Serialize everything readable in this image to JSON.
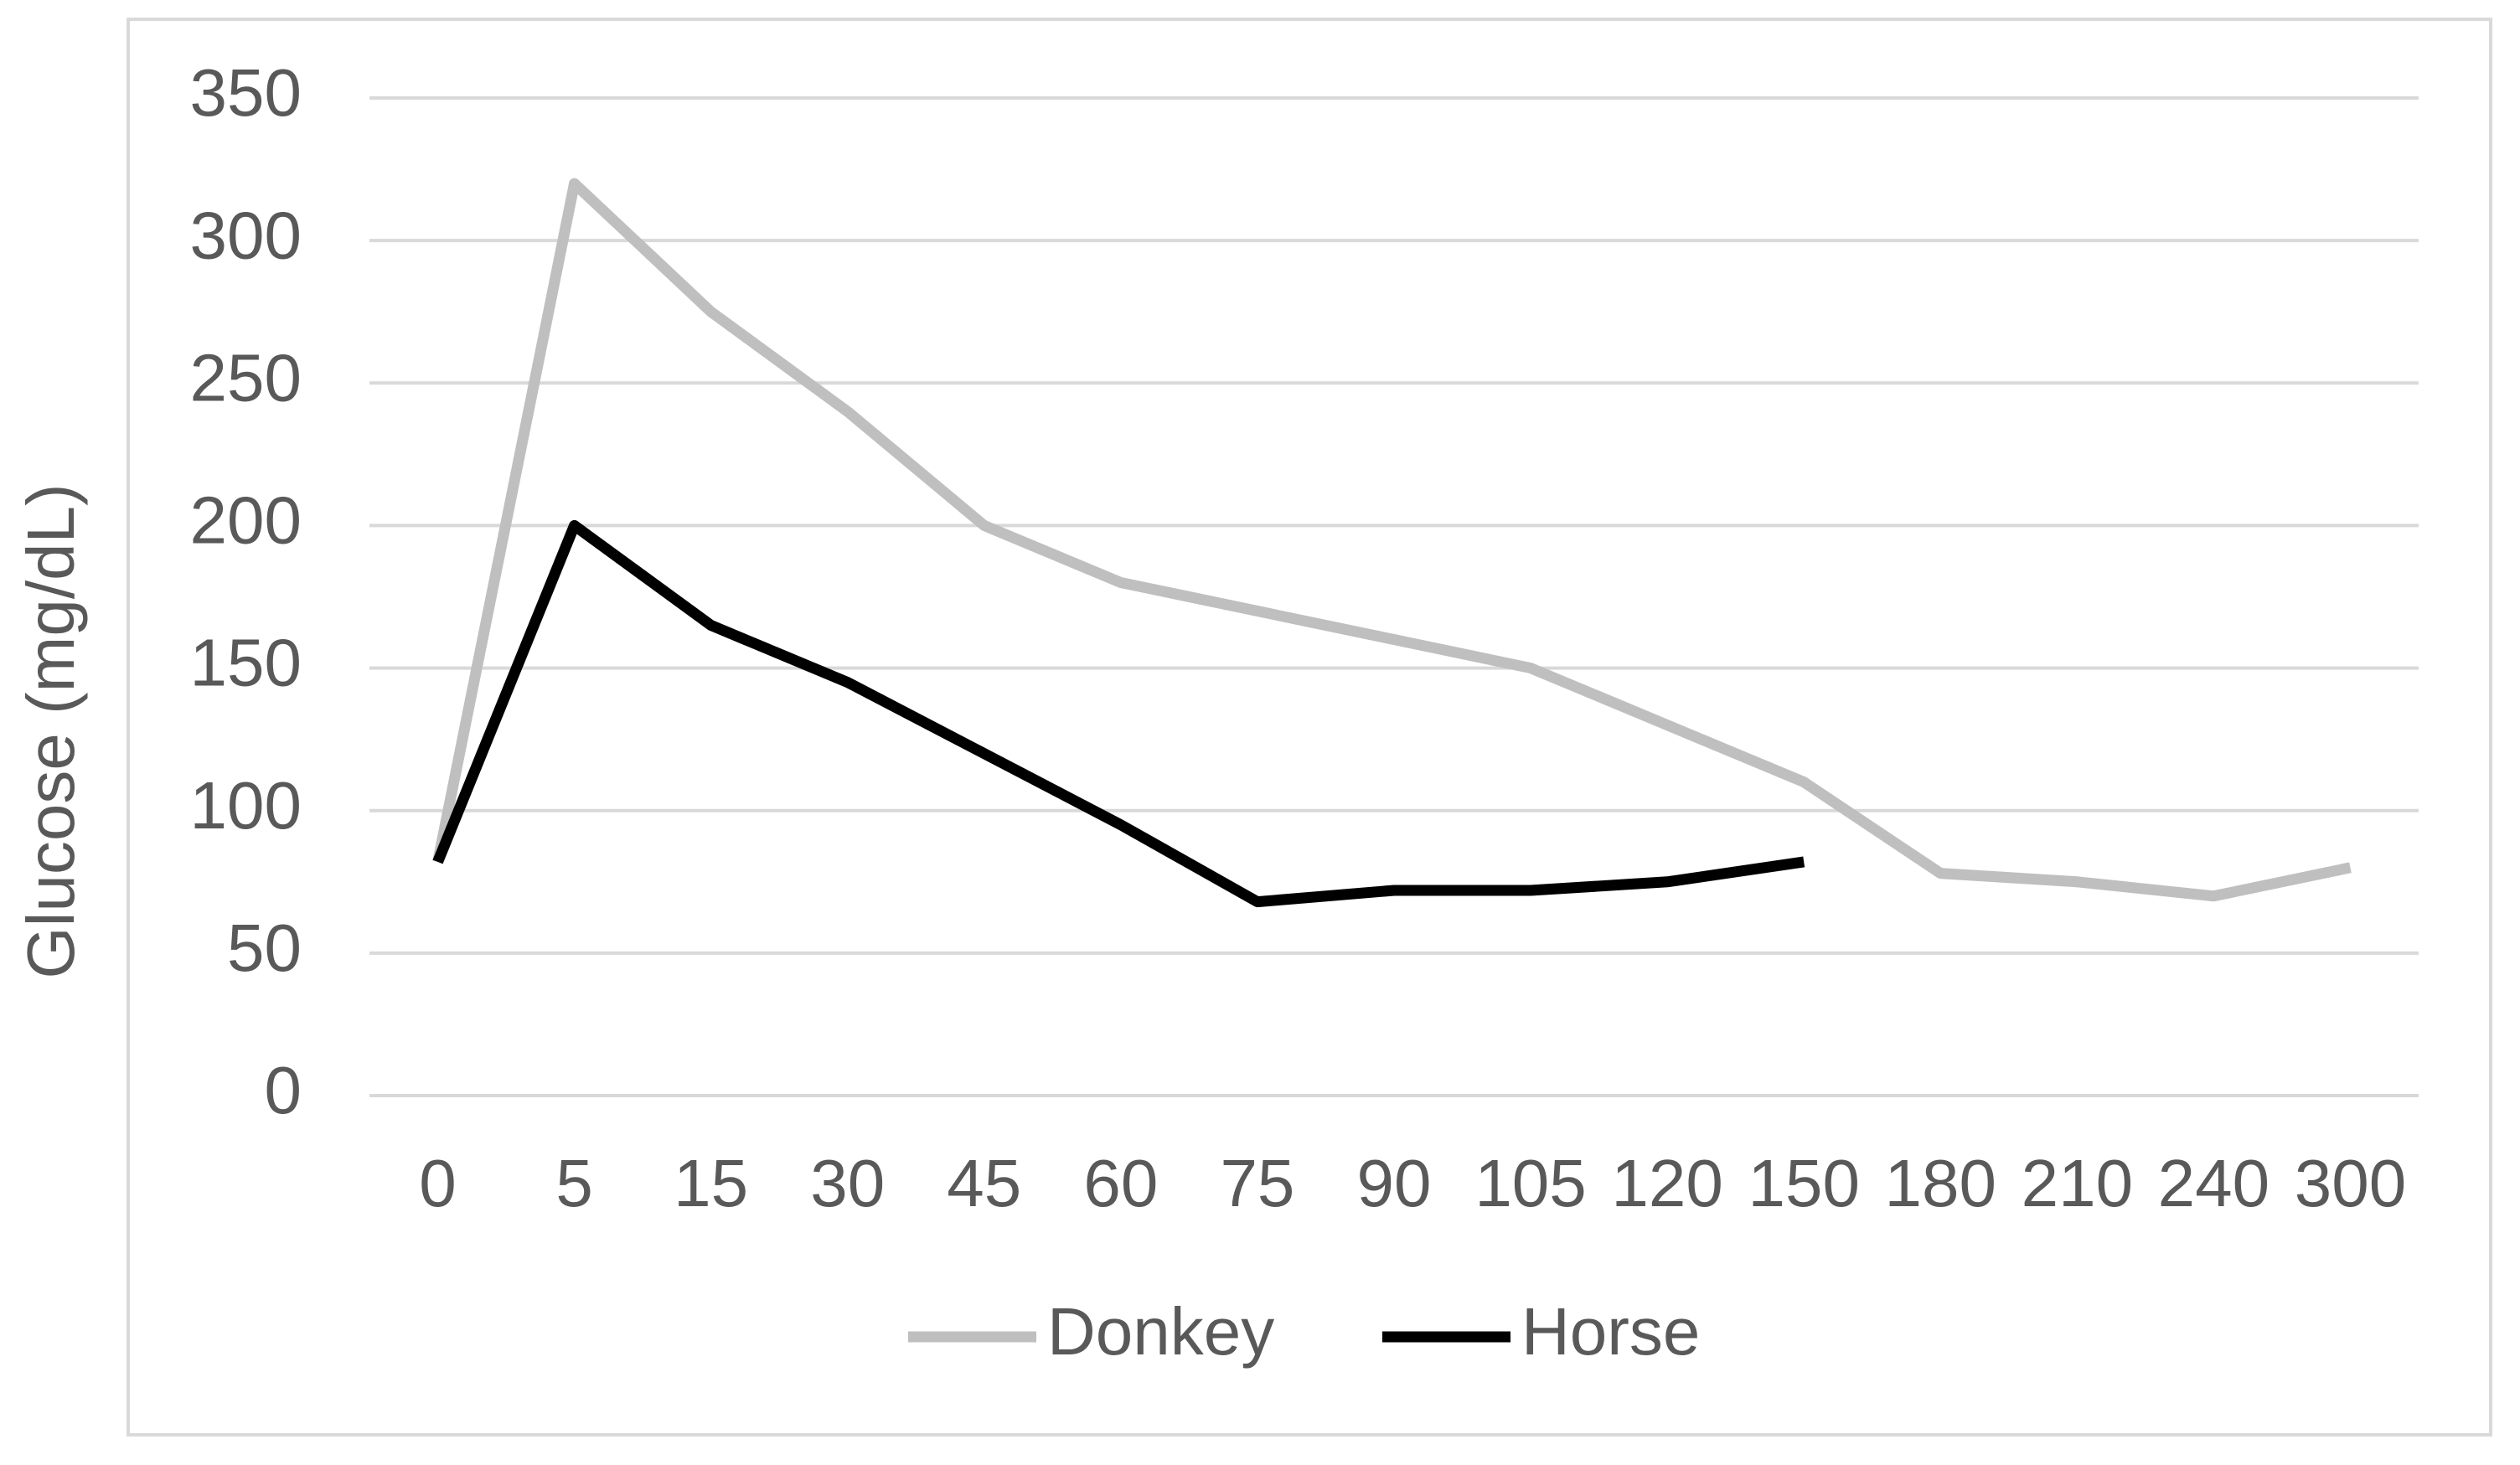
{
  "chart_data": {
    "type": "line",
    "y_label": "Glucose (mg/dL)",
    "categories": [
      "0",
      "5",
      "15",
      "30",
      "45",
      "60",
      "75",
      "90",
      "105",
      "120",
      "150",
      "180",
      "210",
      "240",
      "300"
    ],
    "series": [
      {
        "name": "Donkey",
        "color": "#bfbfbf",
        "values": [
          82,
          320,
          275,
          240,
          200,
          180,
          170,
          160,
          150,
          130,
          110,
          78,
          75,
          70,
          80
        ]
      },
      {
        "name": "Horse",
        "color": "#000000",
        "values": [
          82,
          200,
          165,
          145,
          120,
          95,
          68,
          72,
          72,
          75,
          82,
          null,
          null,
          null,
          null
        ]
      }
    ],
    "ylim": [
      0,
      350
    ],
    "yticks": [
      0,
      50,
      100,
      150,
      200,
      250,
      300,
      350
    ],
    "grid": true,
    "legend": "bottom"
  }
}
